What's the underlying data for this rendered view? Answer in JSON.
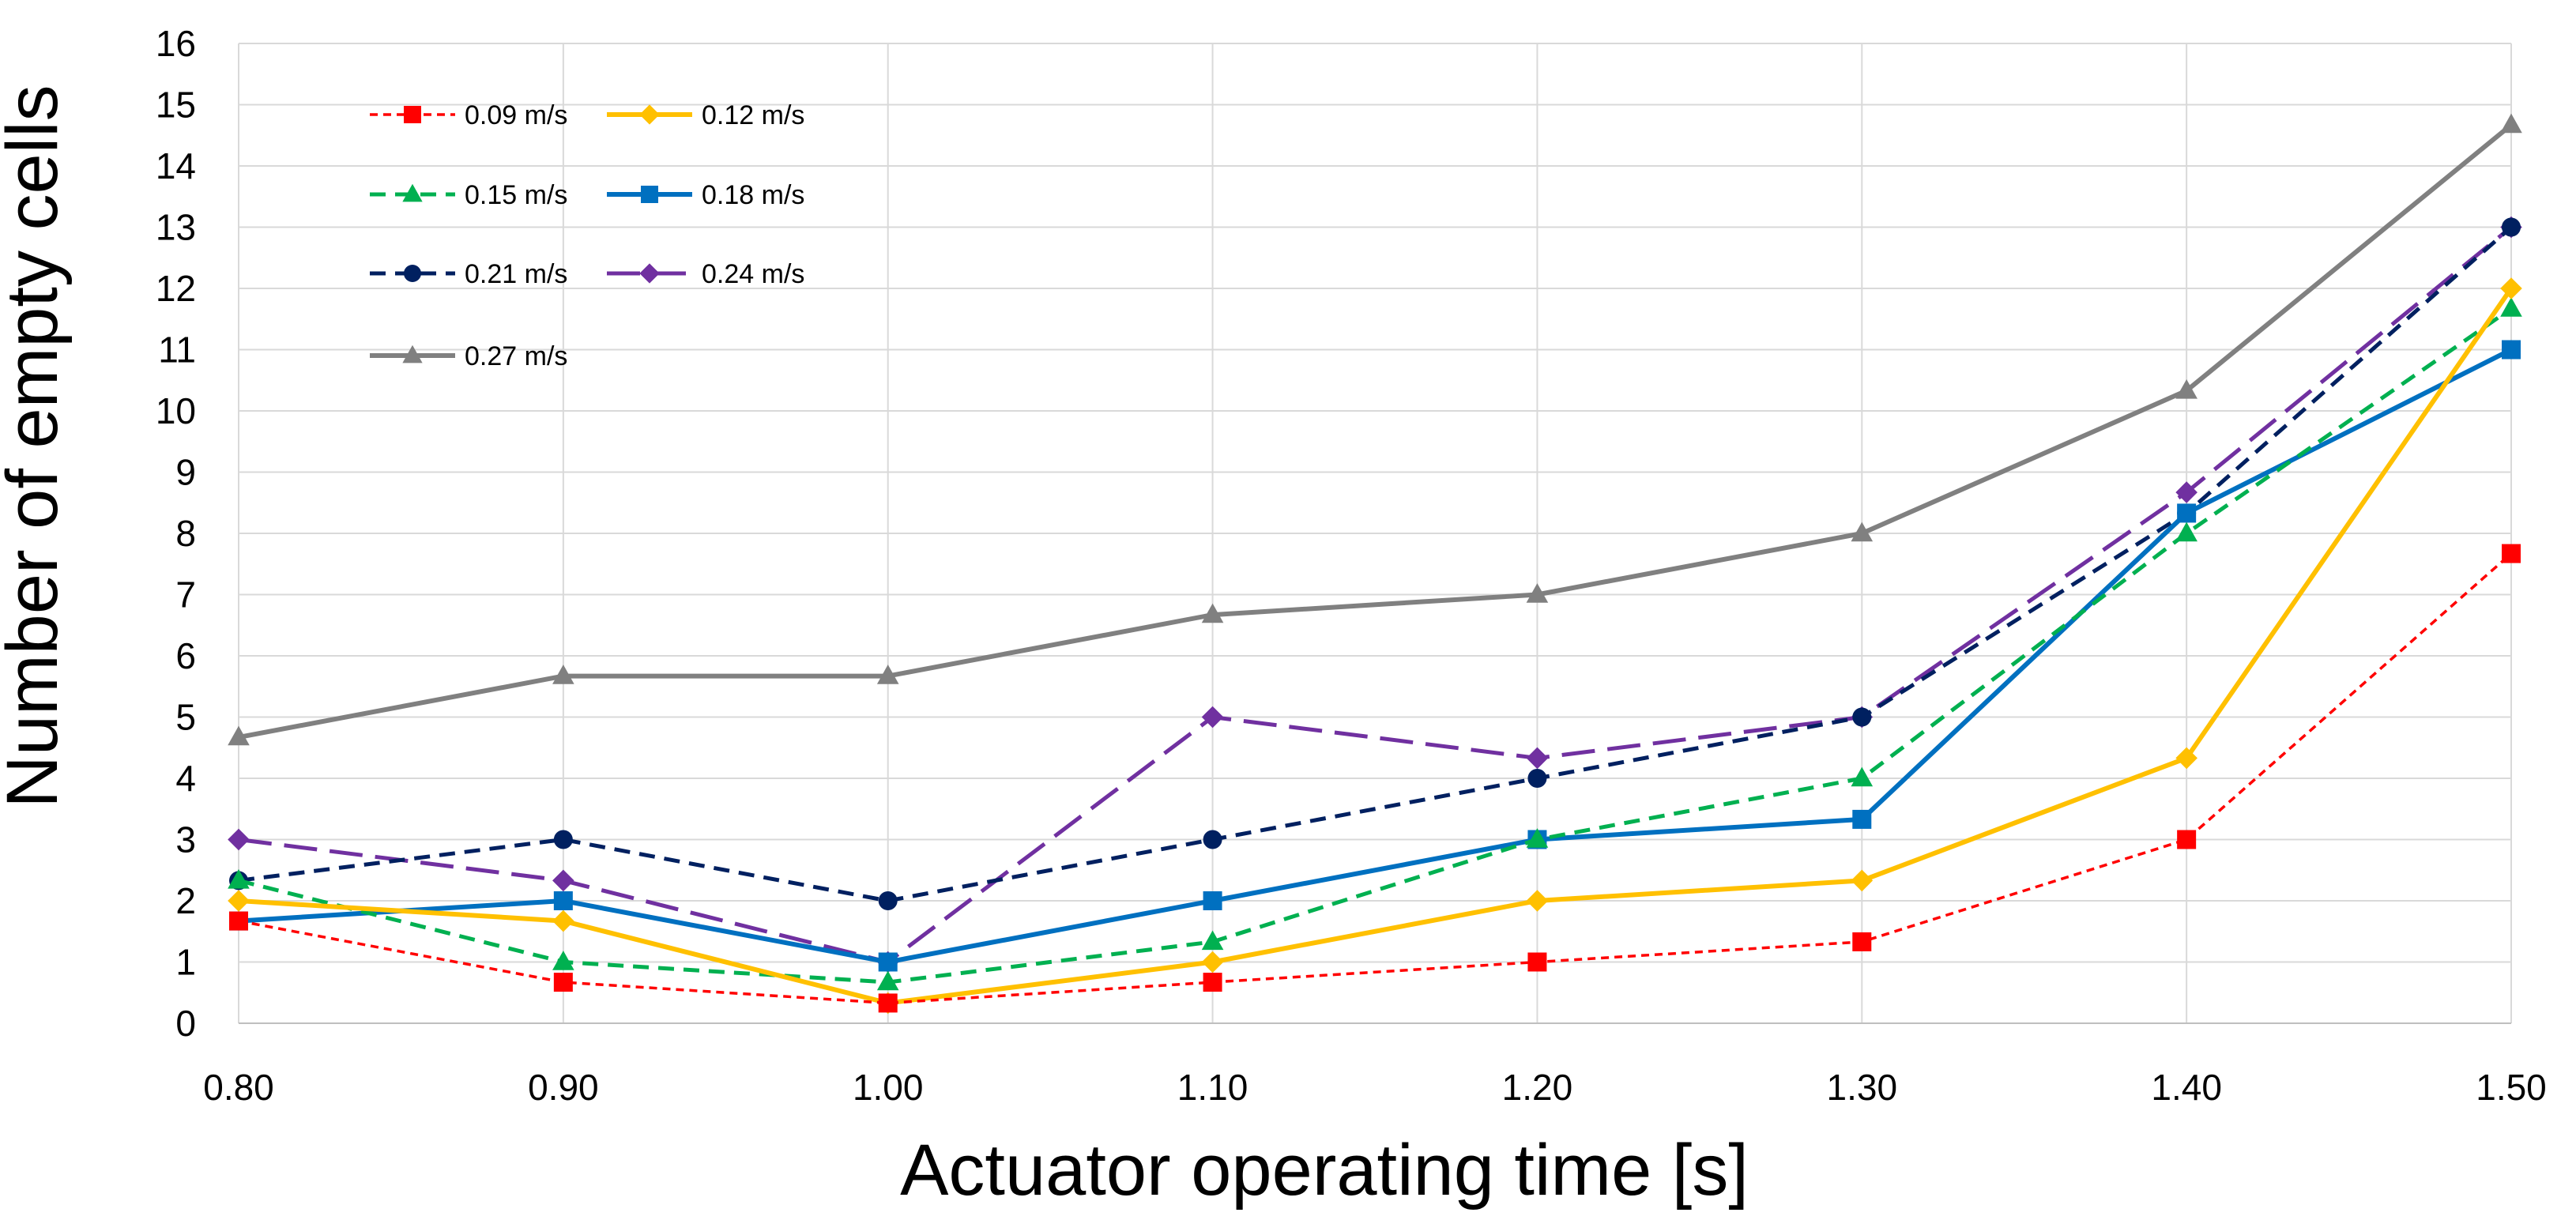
{
  "chart_data": {
    "type": "line",
    "title": "",
    "xlabel": "Actuator operating time [s]",
    "ylabel": "Number of empty cells",
    "x": [
      0.8,
      0.9,
      1.0,
      1.1,
      1.2,
      1.3,
      1.4,
      1.5
    ],
    "x_tick_labels": [
      "0.80",
      "0.90",
      "1.00",
      "1.10",
      "1.20",
      "1.30",
      "1.40",
      "1.50"
    ],
    "y_ticks": [
      0,
      1,
      2,
      3,
      4,
      5,
      6,
      7,
      8,
      9,
      10,
      11,
      12,
      13,
      14,
      15,
      16
    ],
    "xlim": [
      0.8,
      1.5
    ],
    "ylim": [
      0,
      16
    ],
    "grid": true,
    "legend_position": "top-left",
    "series": [
      {
        "name": "0.09 m/s",
        "color": "#ff0000",
        "dash": "short-dash",
        "marker": "square",
        "values": [
          1.67,
          0.67,
          0.33,
          0.67,
          1.0,
          1.33,
          3.0,
          7.67
        ]
      },
      {
        "name": "0.12 m/s",
        "color": "#ffc000",
        "dash": "solid",
        "marker": "diamond",
        "values": [
          2.0,
          1.67,
          0.33,
          1.0,
          2.0,
          2.33,
          4.33,
          12.0
        ]
      },
      {
        "name": "0.15 m/s",
        "color": "#00b050",
        "dash": "dash",
        "marker": "triangle",
        "values": [
          2.33,
          1.0,
          0.67,
          1.33,
          3.0,
          4.0,
          8.0,
          11.67
        ]
      },
      {
        "name": "0.18 m/s",
        "color": "#0070c0",
        "dash": "solid",
        "marker": "square",
        "values": [
          1.67,
          2.0,
          1.0,
          2.0,
          3.0,
          3.33,
          8.33,
          11.0
        ]
      },
      {
        "name": "0.21 m/s",
        "color": "#002060",
        "dash": "dash",
        "marker": "circle",
        "values": [
          2.33,
          3.0,
          2.0,
          3.0,
          4.0,
          5.0,
          8.33,
          13.0
        ]
      },
      {
        "name": "0.24 m/s",
        "color": "#7030a0",
        "dash": "long-dash",
        "marker": "diamond",
        "values": [
          3.0,
          2.33,
          1.0,
          5.0,
          4.33,
          5.0,
          8.67,
          13.0
        ]
      },
      {
        "name": "0.27 m/s",
        "color": "#808080",
        "dash": "solid",
        "marker": "triangle",
        "values": [
          4.67,
          5.67,
          5.67,
          6.67,
          7.0,
          8.0,
          10.33,
          14.67
        ]
      }
    ]
  }
}
